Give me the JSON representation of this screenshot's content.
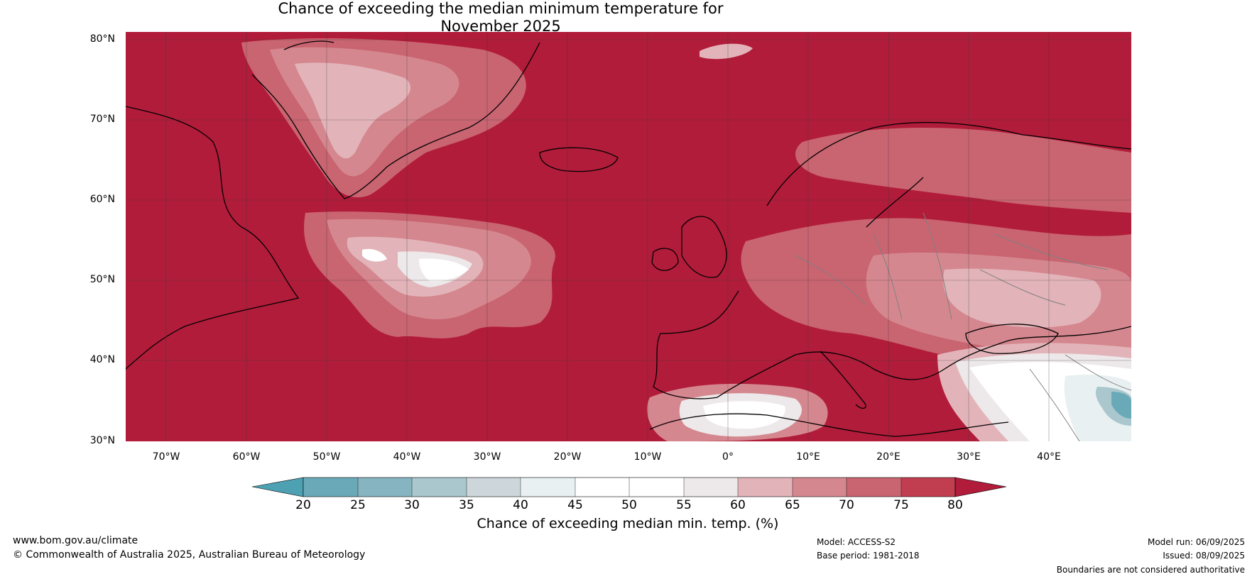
{
  "title_line1": "Chance of exceeding the median minimum temperature for",
  "title_line2": "November 2025",
  "colors": {
    "ocean_base": "#b11c3a",
    "c75": "#c13e50",
    "c70": "#c96471",
    "c65": "#d5878f",
    "c60": "#e2b4b9",
    "c55": "#ede8e9",
    "c50": "#ffffff",
    "c45": "#ffffff",
    "c40": "#e9f0f1",
    "c35": "#cdd6da",
    "c30": "#a9c7cd",
    "c25": "#86b5c1",
    "c20": "#6aaab8",
    "below20": "#4ea1b2",
    "coast": "#000000",
    "border": "#808080",
    "grid": "#3a3a3a"
  },
  "lat_labels": [
    "80°N",
    "70°N",
    "60°N",
    "50°N",
    "40°N",
    "30°N"
  ],
  "lon_labels": [
    "70°W",
    "60°W",
    "50°W",
    "40°W",
    "30°W",
    "20°W",
    "10°W",
    "0°",
    "10°E",
    "20°E",
    "30°E",
    "40°E"
  ],
  "colorbar": {
    "ticks": [
      "20",
      "25",
      "30",
      "35",
      "40",
      "45",
      "50",
      "55",
      "60",
      "65",
      "70",
      "75",
      "80"
    ],
    "title": "Chance of exceeding median min. temp. (%)"
  },
  "footer": {
    "website": "www.bom.gov.au/climate",
    "copyright": "© Commonwealth of Australia 2025, Australian Bureau of Meteorology",
    "model": "Model: ACCESS-S2",
    "base_period": "Base period: 1981-2018",
    "model_run": "Model run: 06/09/2025",
    "issued": "Issued: 08/09/2025",
    "disclaimer": "Boundaries are not considered authoritative"
  }
}
